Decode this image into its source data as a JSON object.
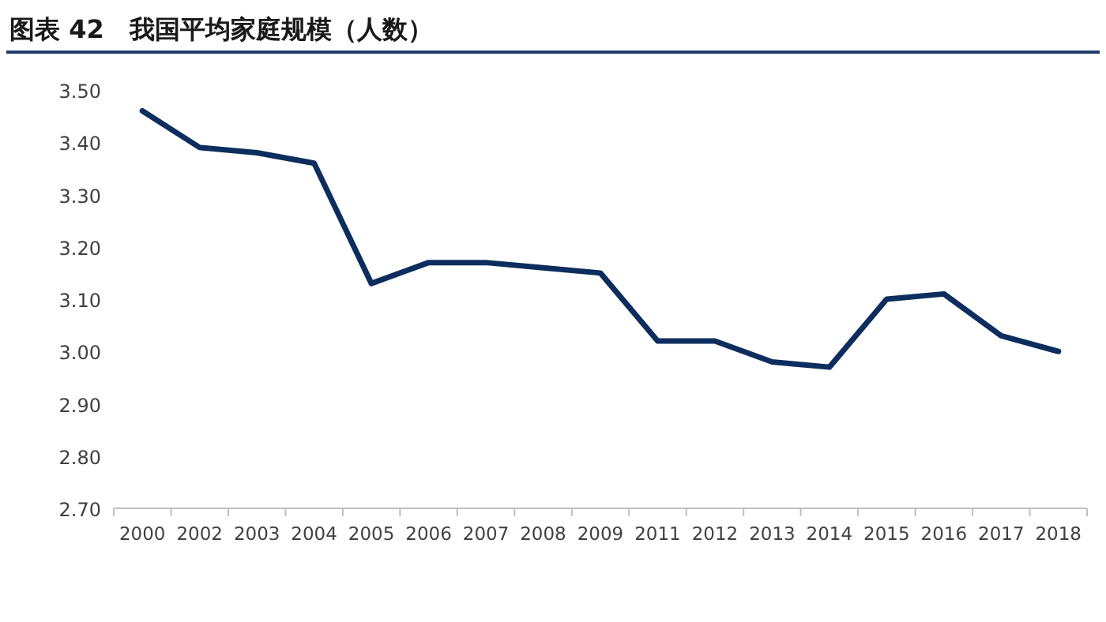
{
  "chart_data": {
    "type": "line",
    "title": "图表 42　我国平均家庭规模（人数）",
    "categories": [
      "2000",
      "2002",
      "2003",
      "2004",
      "2005",
      "2006",
      "2007",
      "2008",
      "2009",
      "2011",
      "2012",
      "2013",
      "2014",
      "2015",
      "2016",
      "2017",
      "2018"
    ],
    "series": [
      {
        "color": "#0d2d5e",
        "values": [
          3.46,
          3.39,
          3.38,
          3.36,
          3.13,
          3.17,
          3.17,
          3.16,
          3.15,
          3.02,
          3.02,
          2.98,
          2.97,
          3.1,
          3.11,
          3.03,
          3.0
        ]
      }
    ],
    "ylim": [
      2.7,
      3.5
    ],
    "yticks": [
      {
        "value": 2.7,
        "label": "2.70"
      },
      {
        "value": 2.8,
        "label": "2.80"
      },
      {
        "value": 2.9,
        "label": "2.90"
      },
      {
        "value": 3.0,
        "label": "3.00"
      },
      {
        "value": 3.1,
        "label": "3.10"
      },
      {
        "value": 3.2,
        "label": "3.20"
      },
      {
        "value": 3.3,
        "label": "3.30"
      },
      {
        "value": 3.4,
        "label": "3.40"
      },
      {
        "value": 3.5,
        "label": "3.50"
      }
    ],
    "line_style": "solid",
    "marker": "none",
    "grid": false
  }
}
